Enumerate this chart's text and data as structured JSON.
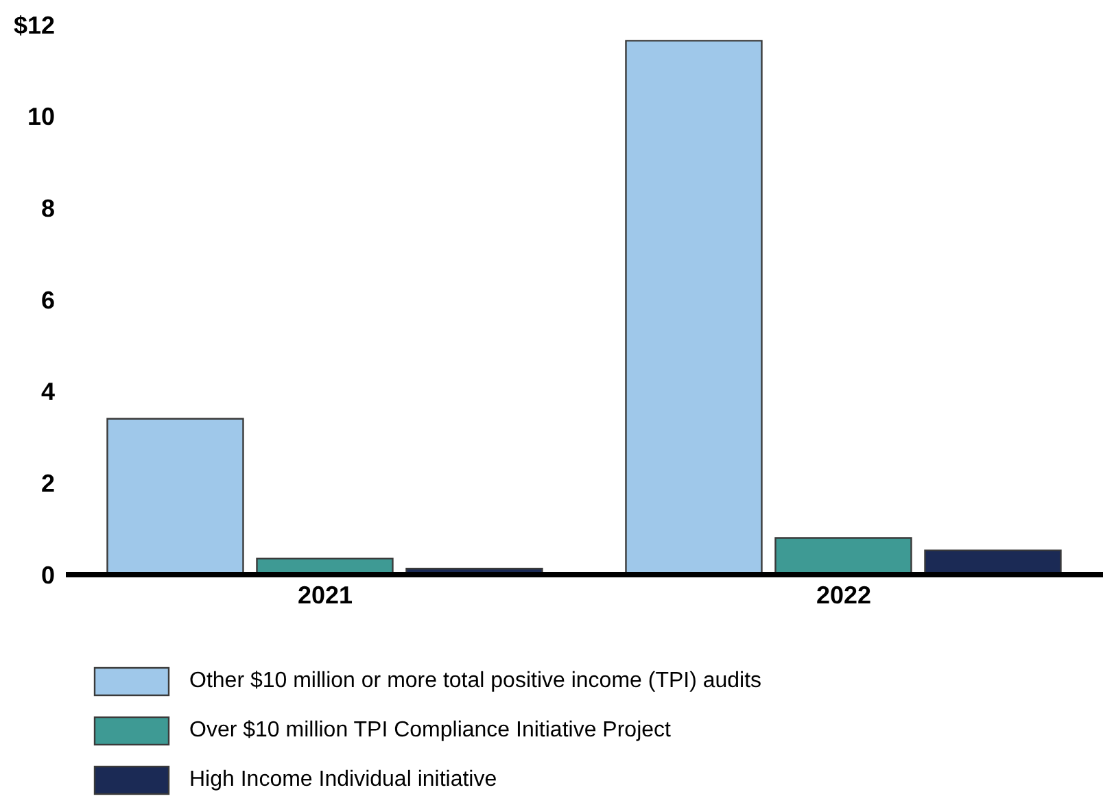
{
  "chart_data": {
    "type": "bar",
    "categories": [
      "2021",
      "2022"
    ],
    "series": [
      {
        "name": "Other $10 million or more total positive income (TPI) audits",
        "color": "#9fc8ea",
        "values": [
          3.4,
          11.65
        ]
      },
      {
        "name": "Over $10 million TPI Compliance Initiative Project",
        "color": "#3e9a94",
        "values": [
          0.35,
          0.8
        ]
      },
      {
        "name": "High Income Individual initiative",
        "color": "#1b2a55",
        "values": [
          0.13,
          0.53
        ]
      }
    ],
    "ylim": [
      0,
      12
    ],
    "yticks": [
      0,
      2,
      4,
      6,
      8,
      10,
      {
        "value": 12,
        "label": "$12"
      }
    ],
    "grid": false,
    "legend": "bottom"
  }
}
